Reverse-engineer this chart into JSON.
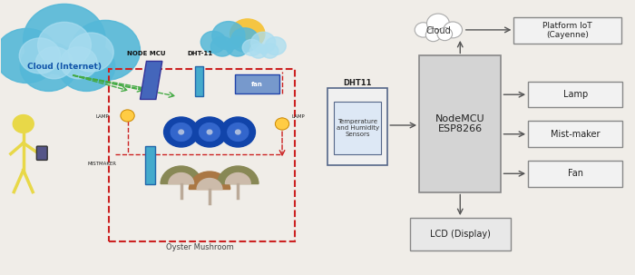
{
  "bg_color": "#f0ede8",
  "left_bg": "#e8e0d5",
  "right_bg": "#f8f8f8",
  "cloud_text": "Cloud",
  "platform_text": "Platform IoT\n(Cayenne)",
  "nodemcu_text": "NodeMCU\nESP8266",
  "dht_title": "DHT11",
  "dht_subtitle": "Temperature\nand Humidity\nSensors",
  "lamp_text": "Lamp",
  "mistmaker_text": "Mist-maker",
  "fan_text": "Fan",
  "lcd_text": "LCD (Display)",
  "left_title": "Cloud (Internet)",
  "arrow_color": "#555555"
}
